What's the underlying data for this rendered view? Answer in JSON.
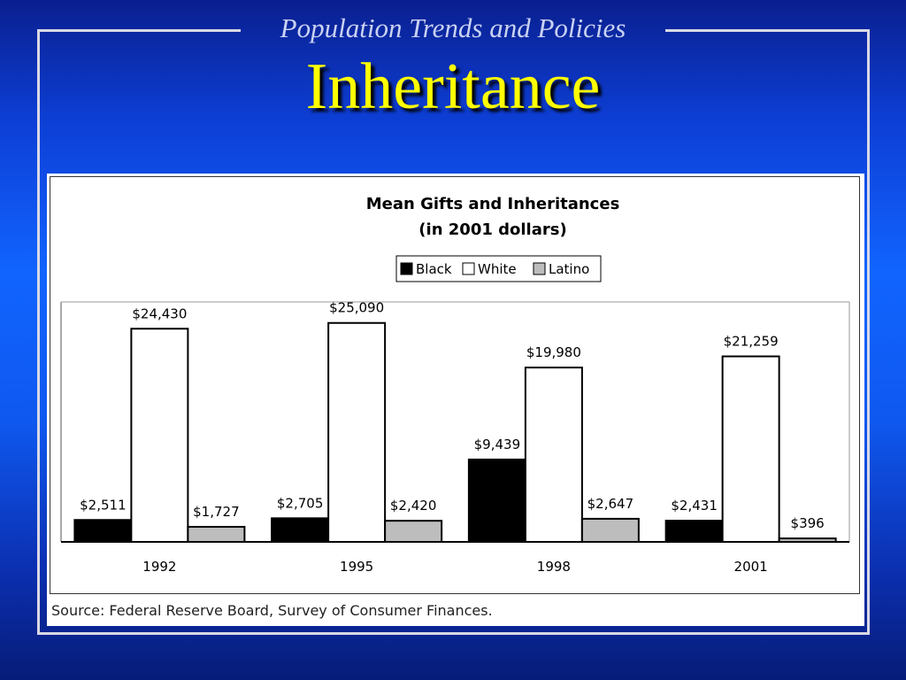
{
  "slide": {
    "subtitle": "Population Trends and Policies",
    "title": "Inheritance",
    "source": "Source: Federal Reserve Board, Survey of Consumer Finances."
  },
  "colors": {
    "black_series": "#000000",
    "white_series": "#ffffff",
    "latino_series": "#bdbdbd",
    "title_color": "#ffff00"
  },
  "chart_data": {
    "type": "bar",
    "title": "Mean Gifts and Inheritances",
    "subtitle": "(in 2001 dollars)",
    "xlabel": "",
    "ylabel": "",
    "legend_position": "top-center",
    "grid": false,
    "categories": [
      "1992",
      "1995",
      "1998",
      "2001"
    ],
    "ylim": [
      0,
      27500
    ],
    "series": [
      {
        "name": "Black",
        "color": "#000000",
        "values": [
          2511,
          2705,
          9439,
          2431
        ],
        "labels": [
          "$2,511",
          "$2,705",
          "$9,439",
          "$2,431"
        ]
      },
      {
        "name": "White",
        "color": "#ffffff",
        "values": [
          24430,
          25090,
          19980,
          21259
        ],
        "labels": [
          "$24,430",
          "$25,090",
          "$19,980",
          "$21,259"
        ]
      },
      {
        "name": "Latino",
        "color": "#bdbdbd",
        "values": [
          1727,
          2420,
          2647,
          396
        ],
        "labels": [
          "$1,727",
          "$2,420",
          "$2,647",
          "$396"
        ]
      }
    ]
  }
}
